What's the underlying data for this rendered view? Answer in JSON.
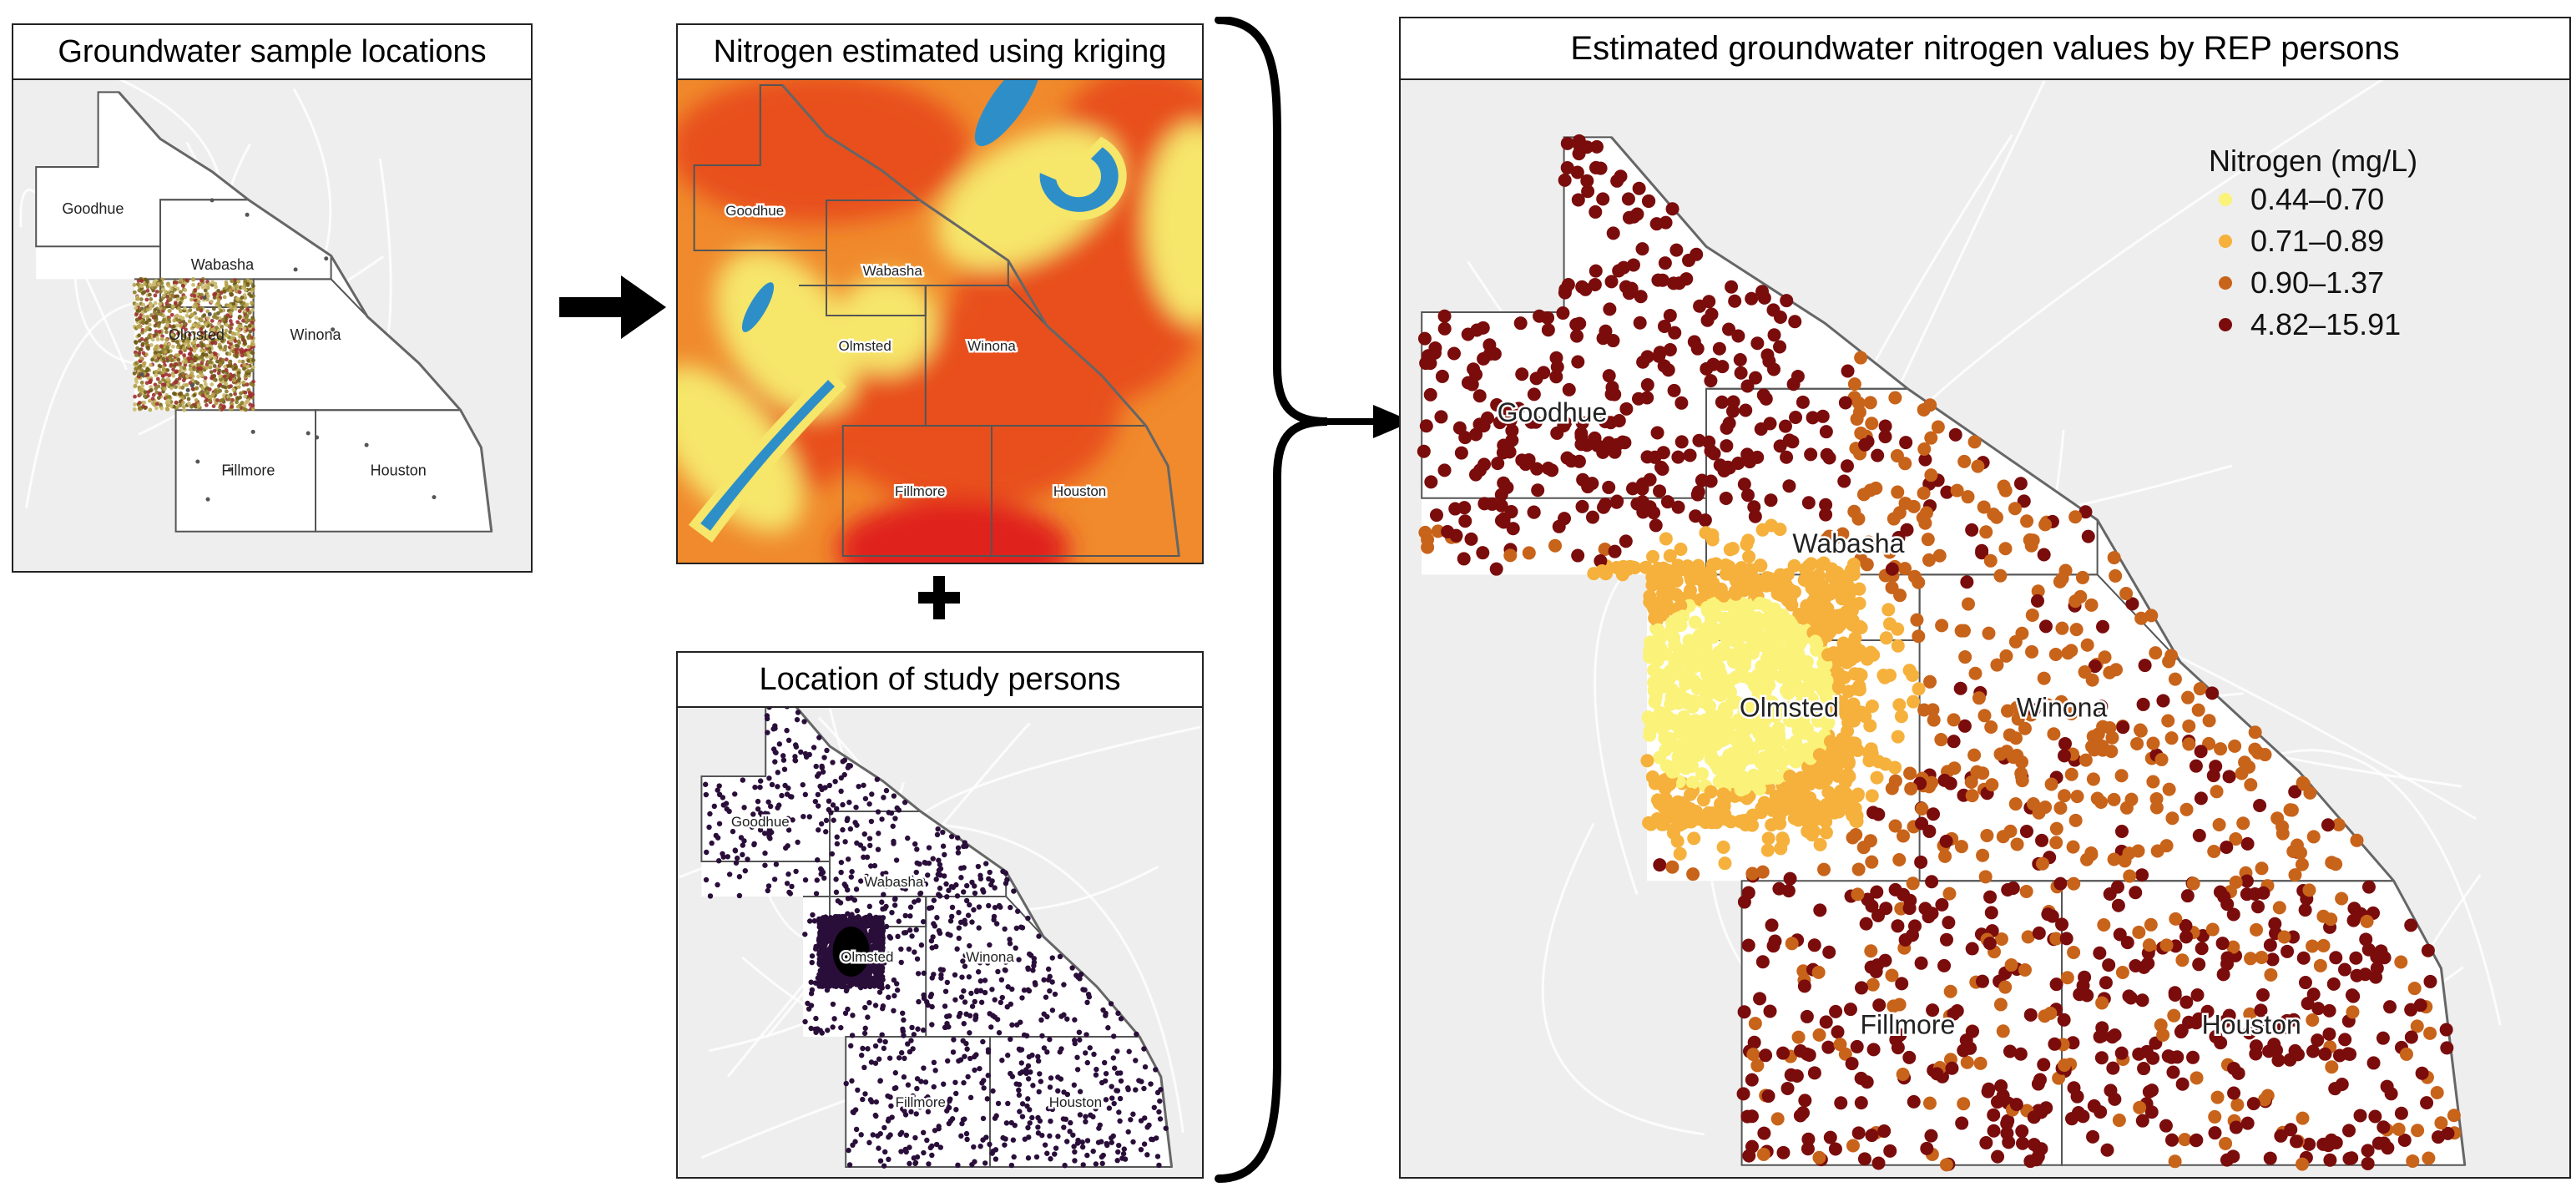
{
  "panels": {
    "samples": {
      "title": "Groundwater sample locations"
    },
    "kriging": {
      "title": "Nitrogen estimated using kriging"
    },
    "persons": {
      "title": "Location of study persons"
    },
    "estimated": {
      "title": "Estimated groundwater nitrogen values by REP persons"
    }
  },
  "counties": {
    "goodhue": "Goodhue",
    "wabasha": "Wabasha",
    "olmsted": "Olmsted",
    "winona": "Winona",
    "fillmore": "Fillmore",
    "houston": "Houston"
  },
  "legend": {
    "title": "Nitrogen (mg/L)",
    "items": [
      {
        "label": "0.44–0.70",
        "color": "#fbf27a"
      },
      {
        "label": "0.71–0.89",
        "color": "#f5b13c"
      },
      {
        "label": "0.90–1.37",
        "color": "#c8631a"
      },
      {
        "label": "4.82–15.91",
        "color": "#7a0c0c"
      }
    ]
  },
  "colors": {
    "kriging_base": "#f08a2c",
    "kriging_high": "#e8501f",
    "kriging_peak": "#e0201a",
    "kriging_yellow": "#f6e66a",
    "kriging_blue": "#2e8fc8",
    "person_dot": "#2a0e3a",
    "sample_dot": "#9a8a3a",
    "map_bg": "#eeeeee"
  },
  "icons": {
    "arrow": "arrow-right-icon",
    "plus": "plus-icon",
    "brace": "curly-brace-icon"
  }
}
